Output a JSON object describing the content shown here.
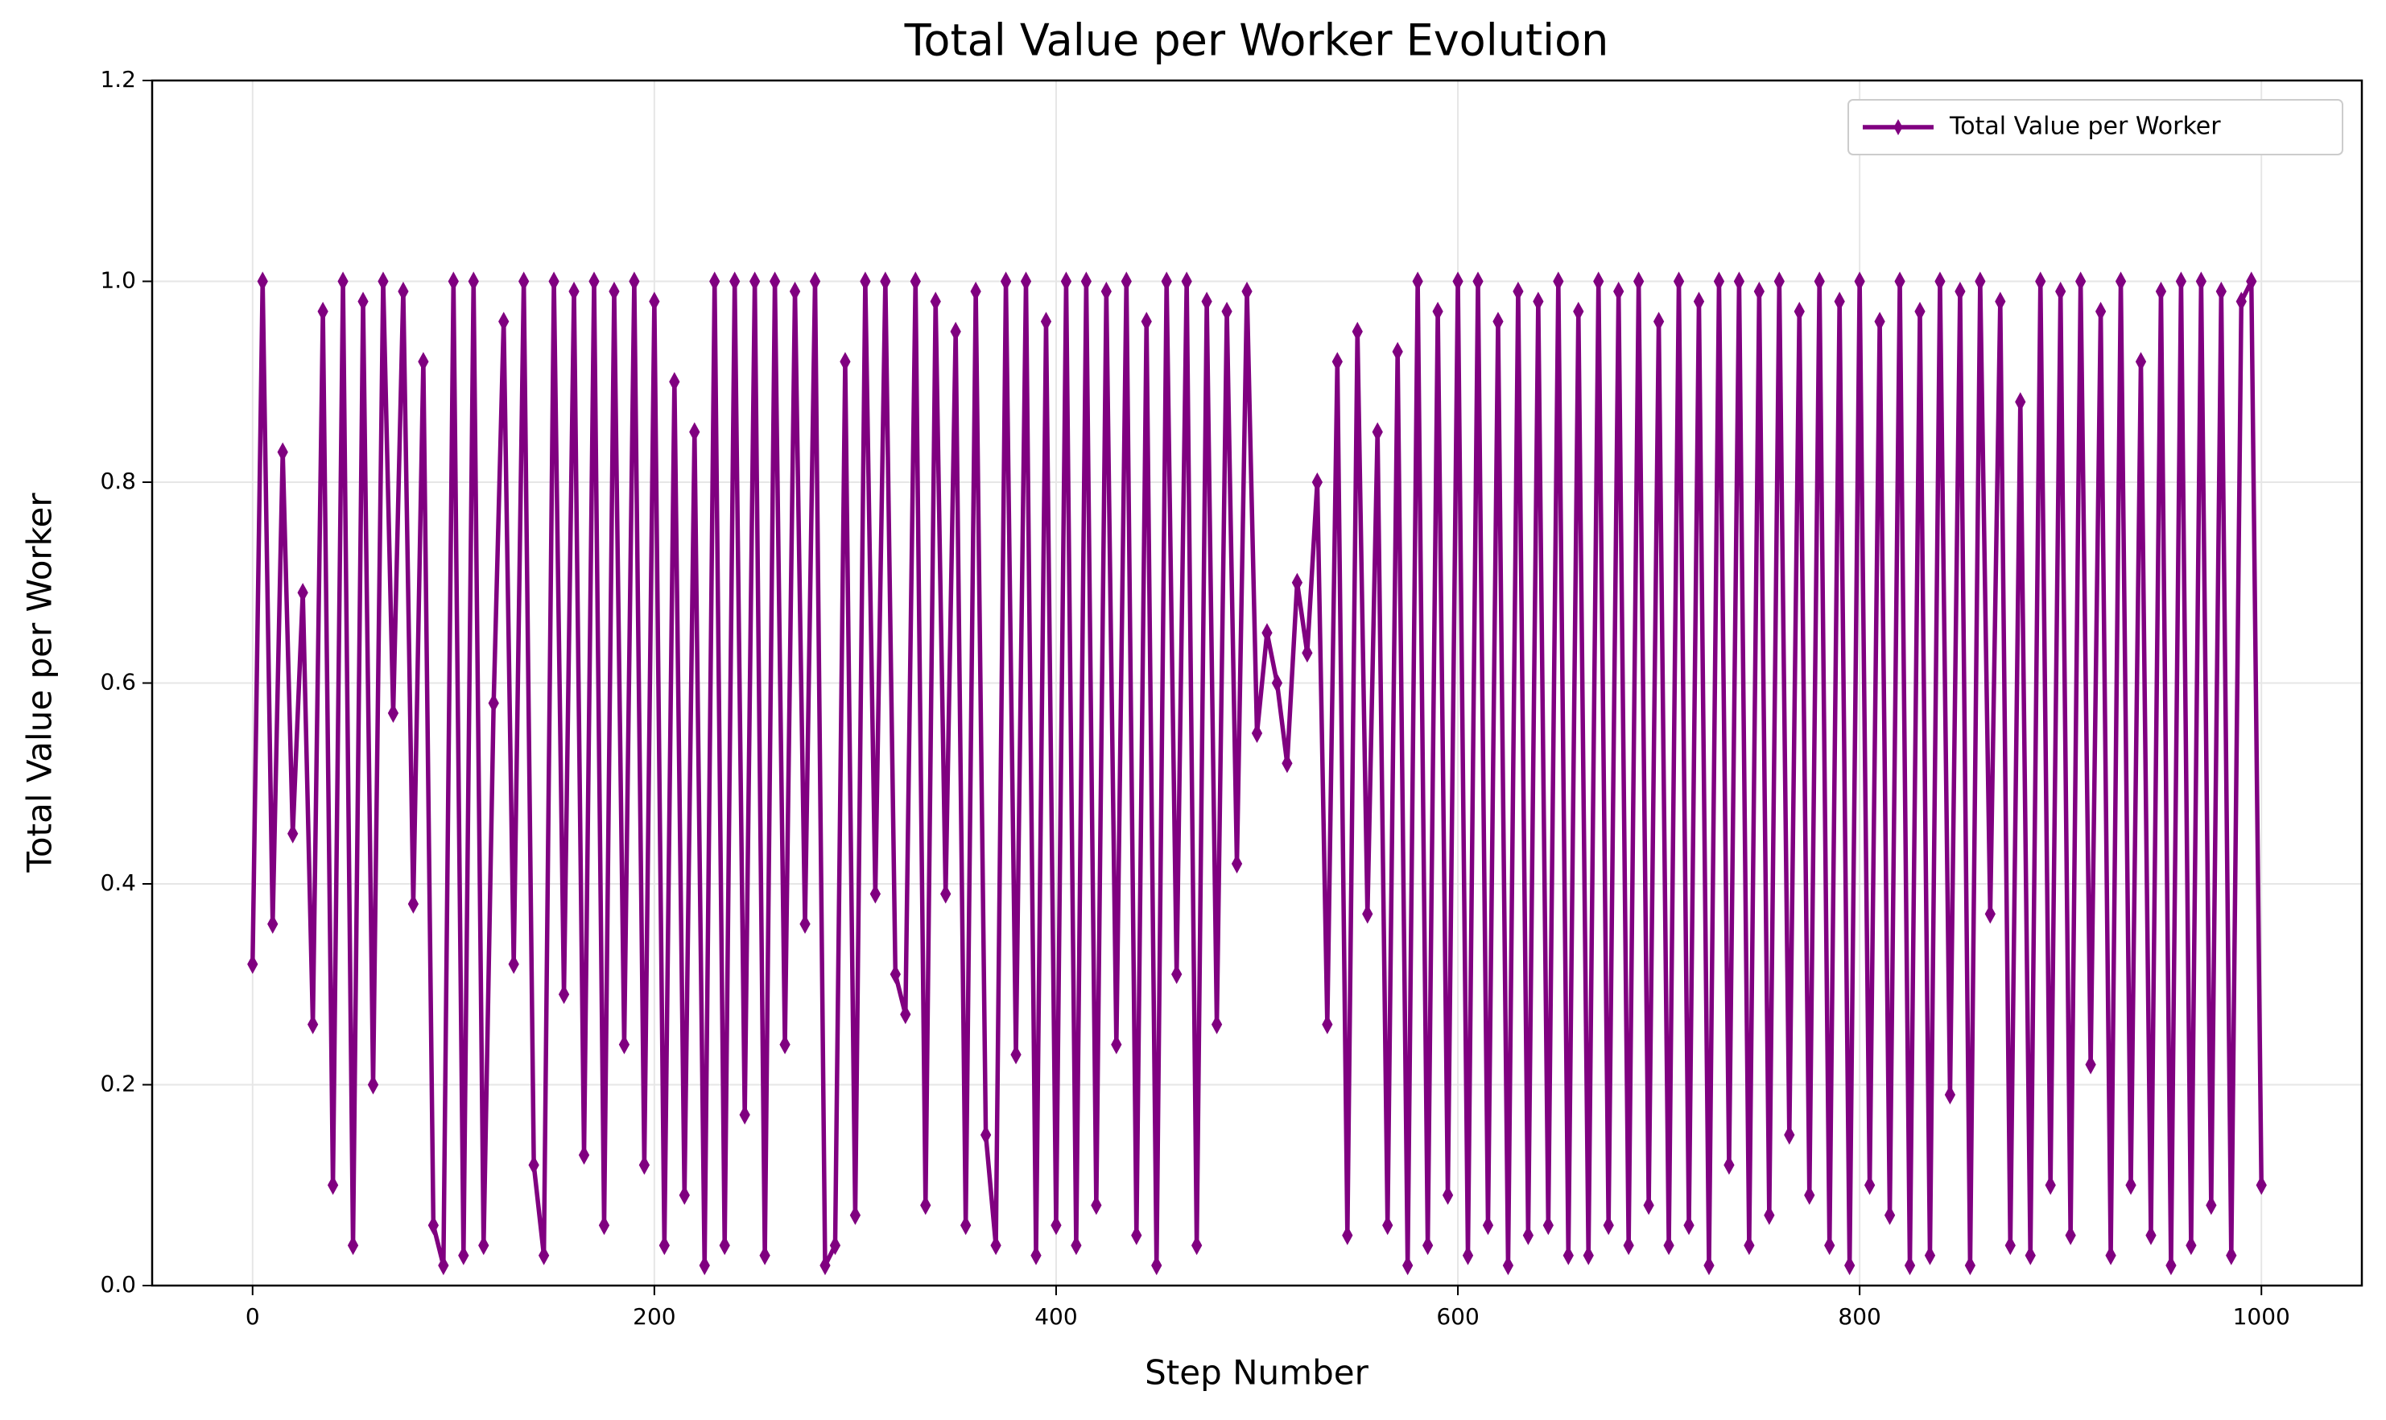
{
  "chart_data": {
    "type": "line",
    "title": "Total Value per Worker Evolution",
    "xlabel": "Step Number",
    "ylabel": "Total Value per Worker",
    "xlim": [
      -50,
      1050
    ],
    "ylim": [
      0,
      1.2
    ],
    "xticks": [
      0,
      200,
      400,
      600,
      800,
      1000
    ],
    "yticks": [
      {
        "value": 0,
        "label": "0.0"
      },
      {
        "value": 0.2,
        "label": "0.2"
      },
      {
        "value": 0.4,
        "label": "0.4"
      },
      {
        "value": 0.6,
        "label": "0.6"
      },
      {
        "value": 0.8,
        "label": "0.8"
      },
      {
        "value": 1,
        "label": "1.0"
      },
      {
        "value": 1.2,
        "label": "1.2"
      }
    ],
    "grid": true,
    "legend": "upper right",
    "x": [
      0,
      5,
      10,
      15,
      20,
      25,
      30,
      35,
      40,
      45,
      50,
      55,
      60,
      65,
      70,
      75,
      80,
      85,
      90,
      95,
      100,
      105,
      110,
      115,
      120,
      125,
      130,
      135,
      140,
      145,
      150,
      155,
      160,
      165,
      170,
      175,
      180,
      185,
      190,
      195,
      200,
      205,
      210,
      215,
      220,
      225,
      230,
      235,
      240,
      245,
      250,
      255,
      260,
      265,
      270,
      275,
      280,
      285,
      290,
      295,
      300,
      305,
      310,
      315,
      320,
      325,
      330,
      335,
      340,
      345,
      350,
      355,
      360,
      365,
      370,
      375,
      380,
      385,
      390,
      395,
      400,
      405,
      410,
      415,
      420,
      425,
      430,
      435,
      440,
      445,
      450,
      455,
      460,
      465,
      470,
      475,
      480,
      485,
      490,
      495,
      500,
      505,
      510,
      515,
      520,
      525,
      530,
      535,
      540,
      545,
      550,
      555,
      560,
      565,
      570,
      575,
      580,
      585,
      590,
      595,
      600,
      605,
      610,
      615,
      620,
      625,
      630,
      635,
      640,
      645,
      650,
      655,
      660,
      665,
      670,
      675,
      680,
      685,
      690,
      695,
      700,
      705,
      710,
      715,
      720,
      725,
      730,
      735,
      740,
      745,
      750,
      755,
      760,
      765,
      770,
      775,
      780,
      785,
      790,
      795,
      800,
      805,
      810,
      815,
      820,
      825,
      830,
      835,
      840,
      845,
      850,
      855,
      860,
      865,
      870,
      875,
      880,
      885,
      890,
      895,
      900,
      905,
      910,
      915,
      920,
      925,
      930,
      935,
      940,
      945,
      950,
      955,
      960,
      965,
      970,
      975,
      980,
      985,
      990,
      995,
      1000
    ],
    "series": [
      {
        "name": "Total Value per Worker",
        "color": "#800080",
        "values": [
          0.32,
          1.0,
          0.36,
          0.83,
          0.45,
          0.69,
          0.26,
          0.97,
          0.1,
          1.0,
          0.04,
          0.98,
          0.2,
          1.0,
          0.57,
          0.99,
          0.38,
          0.92,
          0.06,
          0.02,
          1.0,
          0.03,
          1.0,
          0.04,
          0.58,
          0.96,
          0.32,
          1.0,
          0.12,
          0.03,
          1.0,
          0.29,
          0.99,
          0.13,
          1.0,
          0.06,
          0.99,
          0.24,
          1.0,
          0.12,
          0.98,
          0.04,
          0.9,
          0.09,
          0.85,
          0.02,
          1.0,
          0.04,
          1.0,
          0.17,
          1.0,
          0.03,
          1.0,
          0.24,
          0.99,
          0.36,
          1.0,
          0.02,
          0.04,
          0.92,
          0.07,
          1.0,
          0.39,
          1.0,
          0.31,
          0.27,
          1.0,
          0.08,
          0.98,
          0.39,
          0.95,
          0.06,
          0.99,
          0.15,
          0.04,
          1.0,
          0.23,
          1.0,
          0.03,
          0.96,
          0.06,
          1.0,
          0.04,
          1.0,
          0.08,
          0.99,
          0.24,
          1.0,
          0.05,
          0.96,
          0.02,
          1.0,
          0.31,
          1.0,
          0.04,
          0.98,
          0.26,
          0.97,
          0.42,
          0.99,
          0.55,
          0.65,
          0.6,
          0.52,
          0.7,
          0.63,
          0.8,
          0.26,
          0.92,
          0.05,
          0.95,
          0.37,
          0.85,
          0.06,
          0.93,
          0.02,
          1.0,
          0.04,
          0.97,
          0.09,
          1.0,
          0.03,
          1.0,
          0.06,
          0.96,
          0.02,
          0.99,
          0.05,
          0.98,
          0.06,
          1.0,
          0.03,
          0.97,
          0.03,
          1.0,
          0.06,
          0.99,
          0.04,
          1.0,
          0.08,
          0.96,
          0.04,
          1.0,
          0.06,
          0.98,
          0.02,
          1.0,
          0.12,
          1.0,
          0.04,
          0.99,
          0.07,
          1.0,
          0.15,
          0.97,
          0.09,
          1.0,
          0.04,
          0.98,
          0.02,
          1.0,
          0.1,
          0.96,
          0.07,
          1.0,
          0.02,
          0.97,
          0.03,
          1.0,
          0.19,
          0.99,
          0.02,
          1.0,
          0.37,
          0.98,
          0.04,
          0.88,
          0.03,
          1.0,
          0.1,
          0.99,
          0.05,
          1.0,
          0.22,
          0.97,
          0.03,
          1.0,
          0.1,
          0.92,
          0.05,
          0.99,
          0.02,
          1.0,
          0.04,
          1.0,
          0.08,
          0.99,
          0.03,
          0.98,
          1.0,
          0.1
        ]
      }
    ]
  }
}
